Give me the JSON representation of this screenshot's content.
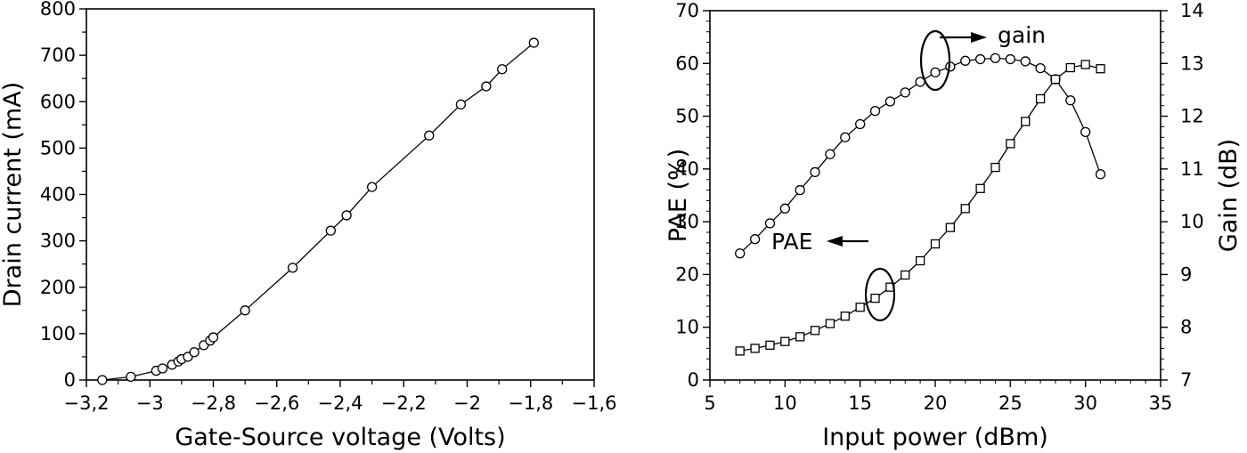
{
  "chart_data": [
    {
      "type": "line",
      "markers": "circle",
      "xlabel": "Gate-Source voltage (Volts)",
      "ylabel": "Drain current (mA)",
      "xlim": [
        -3.2,
        -1.6
      ],
      "ylim": [
        0,
        800
      ],
      "xticks": [
        -3.2,
        -3.0,
        -2.8,
        -2.6,
        -2.4,
        -2.2,
        -2.0,
        -1.8,
        -1.6
      ],
      "xtick_labels": [
        "−3,2",
        "−3",
        "−2,8",
        "−2,6",
        "−2,4",
        "−2,2",
        "−2",
        "−1,8",
        "−1,6"
      ],
      "yticks": [
        0,
        100,
        200,
        300,
        400,
        500,
        600,
        700,
        800
      ],
      "ytick_labels": [
        "0",
        "100",
        "200",
        "300",
        "400",
        "500",
        "600",
        "700",
        "800"
      ],
      "series": [
        {
          "name": "Drain current",
          "x": [
            -3.15,
            -3.06,
            -2.98,
            -2.96,
            -2.93,
            -2.91,
            -2.9,
            -2.88,
            -2.86,
            -2.83,
            -2.81,
            -2.8,
            -2.7,
            -2.55,
            -2.43,
            -2.38,
            -2.3,
            -2.12,
            -2.02,
            -1.94,
            -1.89,
            -1.79
          ],
          "y": [
            0,
            7,
            20,
            25,
            33,
            40,
            45,
            50,
            60,
            75,
            85,
            92,
            150,
            242,
            322,
            355,
            416,
            527,
            594,
            633,
            670,
            727
          ]
        }
      ]
    },
    {
      "type": "line",
      "dual_axis": true,
      "xlabel": "Input power (dBm)",
      "ylabel_left": "PAE (%)",
      "ylabel_right": "Gain (dB)",
      "xlim": [
        5,
        35
      ],
      "ylim_left": [
        0,
        70
      ],
      "ylim_right": [
        7,
        14
      ],
      "xticks": [
        5,
        10,
        15,
        20,
        25,
        30,
        35
      ],
      "xtick_labels": [
        "5",
        "10",
        "15",
        "20",
        "25",
        "30",
        "35"
      ],
      "yticks_left": [
        0,
        10,
        20,
        30,
        40,
        50,
        60,
        70
      ],
      "ytick_labels_left": [
        "0",
        "10",
        "20",
        "30",
        "40",
        "50",
        "60",
        "70"
      ],
      "yticks_right": [
        7,
        8,
        9,
        10,
        11,
        12,
        13,
        14
      ],
      "ytick_labels_right": [
        "7",
        "8",
        "9",
        "10",
        "11",
        "12",
        "13",
        "14"
      ],
      "annotations": [
        "gain",
        "PAE"
      ],
      "series": [
        {
          "name": "gain",
          "axis": "right",
          "markers": "circle",
          "x": [
            7,
            8,
            9,
            10,
            11,
            12,
            13,
            14,
            15,
            16,
            17,
            18,
            19,
            20,
            21,
            22,
            23,
            24,
            25,
            26,
            27,
            28,
            29,
            30,
            31
          ],
          "y": [
            9.4,
            9.67,
            9.97,
            10.25,
            10.6,
            10.94,
            11.28,
            11.6,
            11.85,
            12.1,
            12.28,
            12.45,
            12.65,
            12.83,
            12.94,
            13.05,
            13.08,
            13.1,
            13.08,
            13.04,
            12.91,
            12.7,
            12.3,
            11.7,
            10.9
          ]
        },
        {
          "name": "PAE",
          "axis": "left",
          "markers": "square",
          "x": [
            7,
            8,
            9,
            10,
            11,
            12,
            13,
            14,
            15,
            16,
            17,
            18,
            19,
            20,
            21,
            22,
            23,
            24,
            25,
            26,
            27,
            28,
            29,
            30,
            31
          ],
          "y": [
            5.5,
            6.0,
            6.6,
            7.3,
            8.2,
            9.4,
            10.7,
            12.1,
            13.8,
            15.5,
            17.6,
            19.9,
            22.6,
            25.8,
            28.9,
            32.5,
            36.3,
            40.3,
            44.8,
            49.0,
            53.3,
            57.0,
            59.2,
            59.8,
            59.0
          ]
        }
      ]
    }
  ]
}
